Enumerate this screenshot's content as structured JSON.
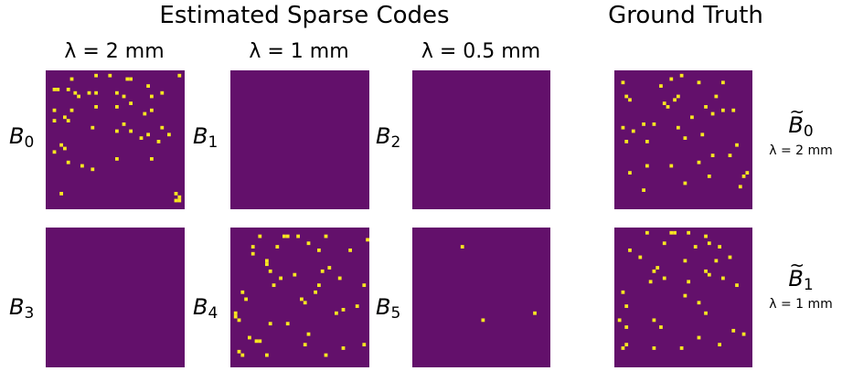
{
  "header": {
    "estimated_title": "Estimated Sparse Codes",
    "ground_truth_title": "Ground Truth"
  },
  "columns": [
    {
      "label": "λ = 2 mm"
    },
    {
      "label": "λ = 1 mm"
    },
    {
      "label": "λ = 0.5 mm"
    }
  ],
  "rows": [
    {
      "labels": [
        {
          "base": "B",
          "sub": "0"
        },
        {
          "base": "B",
          "sub": "1"
        },
        {
          "base": "B",
          "sub": "2"
        }
      ]
    },
    {
      "labels": [
        {
          "base": "B",
          "sub": "3"
        },
        {
          "base": "B",
          "sub": "4"
        },
        {
          "base": "B",
          "sub": "5"
        }
      ]
    }
  ],
  "ground_truth": [
    {
      "base": "B",
      "sub": "0",
      "scale": "λ = 2 mm"
    },
    {
      "base": "B",
      "sub": "1",
      "scale": "λ = 1 mm"
    }
  ],
  "colors": {
    "background": "#63106b",
    "active": "#f8e621"
  },
  "panel_grid_size": 40,
  "panels": {
    "b0": [
      [
        7,
        2
      ],
      [
        14,
        1
      ],
      [
        18,
        1
      ],
      [
        23,
        2
      ],
      [
        24,
        2
      ],
      [
        38,
        1
      ],
      [
        2,
        5
      ],
      [
        3,
        5
      ],
      [
        6,
        5
      ],
      [
        8,
        6
      ],
      [
        9,
        7
      ],
      [
        12,
        6
      ],
      [
        14,
        6
      ],
      [
        20,
        6
      ],
      [
        22,
        7
      ],
      [
        29,
        4
      ],
      [
        33,
        6
      ],
      [
        2,
        11
      ],
      [
        7,
        11
      ],
      [
        14,
        10
      ],
      [
        20,
        10
      ],
      [
        24,
        9
      ],
      [
        28,
        12
      ],
      [
        30,
        11
      ],
      [
        30,
        7
      ],
      [
        2,
        14
      ],
      [
        5,
        13
      ],
      [
        6,
        14
      ],
      [
        22,
        15
      ],
      [
        20,
        17
      ],
      [
        24,
        17
      ],
      [
        33,
        16
      ],
      [
        13,
        16
      ],
      [
        4,
        21
      ],
      [
        5,
        22
      ],
      [
        2,
        23
      ],
      [
        27,
        19
      ],
      [
        29,
        18
      ],
      [
        32,
        20
      ],
      [
        35,
        18
      ],
      [
        6,
        26
      ],
      [
        10,
        27
      ],
      [
        13,
        28
      ],
      [
        4,
        35
      ],
      [
        37,
        35
      ],
      [
        38,
        36
      ],
      [
        38,
        37
      ],
      [
        37,
        37
      ],
      [
        20,
        25
      ],
      [
        30,
        25
      ]
    ],
    "b1": [],
    "b2": [],
    "b3": [],
    "b4": [
      [
        8,
        2
      ],
      [
        15,
        2
      ],
      [
        16,
        2
      ],
      [
        19,
        2
      ],
      [
        27,
        2
      ],
      [
        39,
        3
      ],
      [
        22,
        4
      ],
      [
        13,
        5
      ],
      [
        6,
        7
      ],
      [
        25,
        6
      ],
      [
        34,
        6
      ],
      [
        10,
        9
      ],
      [
        11,
        12
      ],
      [
        26,
        12
      ],
      [
        28,
        11
      ],
      [
        18,
        13
      ],
      [
        14,
        14
      ],
      [
        12,
        16
      ],
      [
        25,
        16
      ],
      [
        24,
        18
      ],
      [
        31,
        14
      ],
      [
        3,
        18
      ],
      [
        4,
        20
      ],
      [
        20,
        20
      ],
      [
        21,
        21
      ],
      [
        38,
        16
      ],
      [
        36,
        22
      ],
      [
        16,
        27
      ],
      [
        30,
        24
      ],
      [
        32,
        23
      ],
      [
        1,
        24
      ],
      [
        1,
        25
      ],
      [
        2,
        26
      ],
      [
        11,
        27
      ],
      [
        5,
        31
      ],
      [
        7,
        32
      ],
      [
        8,
        32
      ],
      [
        22,
        30
      ],
      [
        21,
        33
      ],
      [
        2,
        35
      ],
      [
        3,
        36
      ],
      [
        10,
        36
      ],
      [
        32,
        34
      ],
      [
        27,
        36
      ],
      [
        38,
        33
      ],
      [
        6,
        5
      ],
      [
        10,
        10
      ]
    ],
    "b5": [
      [
        14,
        5
      ],
      [
        20,
        26
      ],
      [
        35,
        24
      ]
    ],
    "gt0": [
      [
        19,
        1
      ],
      [
        2,
        3
      ],
      [
        13,
        4
      ],
      [
        16,
        2
      ],
      [
        24,
        3
      ],
      [
        31,
        3
      ],
      [
        3,
        7
      ],
      [
        4,
        8
      ],
      [
        14,
        9
      ],
      [
        15,
        10
      ],
      [
        17,
        8
      ],
      [
        26,
        10
      ],
      [
        28,
        12
      ],
      [
        22,
        13
      ],
      [
        34,
        11
      ],
      [
        31,
        11
      ],
      [
        8,
        15
      ],
      [
        11,
        15
      ],
      [
        18,
        16
      ],
      [
        2,
        16
      ],
      [
        5,
        17
      ],
      [
        25,
        18
      ],
      [
        20,
        19
      ],
      [
        3,
        20
      ],
      [
        9,
        20
      ],
      [
        35,
        21
      ],
      [
        33,
        24
      ],
      [
        28,
        24
      ],
      [
        24,
        26
      ],
      [
        16,
        27
      ],
      [
        9,
        27
      ],
      [
        4,
        29
      ],
      [
        38,
        29
      ],
      [
        37,
        30
      ],
      [
        27,
        30
      ],
      [
        8,
        34
      ],
      [
        20,
        32
      ],
      [
        36,
        33
      ],
      [
        18,
        7
      ],
      [
        29,
        7
      ]
    ],
    "gt1": [
      [
        9,
        1
      ],
      [
        16,
        1
      ],
      [
        17,
        1
      ],
      [
        21,
        1
      ],
      [
        26,
        2
      ],
      [
        27,
        4
      ],
      [
        14,
        4
      ],
      [
        23,
        5
      ],
      [
        4,
        6
      ],
      [
        30,
        5
      ],
      [
        33,
        8
      ],
      [
        7,
        8
      ],
      [
        20,
        9
      ],
      [
        29,
        9
      ],
      [
        12,
        11
      ],
      [
        11,
        12
      ],
      [
        26,
        12
      ],
      [
        27,
        13
      ],
      [
        14,
        14
      ],
      [
        10,
        15
      ],
      [
        31,
        14
      ],
      [
        21,
        15
      ],
      [
        35,
        16
      ],
      [
        2,
        18
      ],
      [
        20,
        19
      ],
      [
        24,
        21
      ],
      [
        26,
        24
      ],
      [
        3,
        22
      ],
      [
        11,
        26
      ],
      [
        1,
        26
      ],
      [
        13,
        28
      ],
      [
        3,
        28
      ],
      [
        24,
        31
      ],
      [
        34,
        29
      ],
      [
        3,
        33
      ],
      [
        2,
        34
      ],
      [
        11,
        34
      ],
      [
        19,
        34
      ],
      [
        37,
        30
      ],
      [
        30,
        33
      ]
    ]
  }
}
